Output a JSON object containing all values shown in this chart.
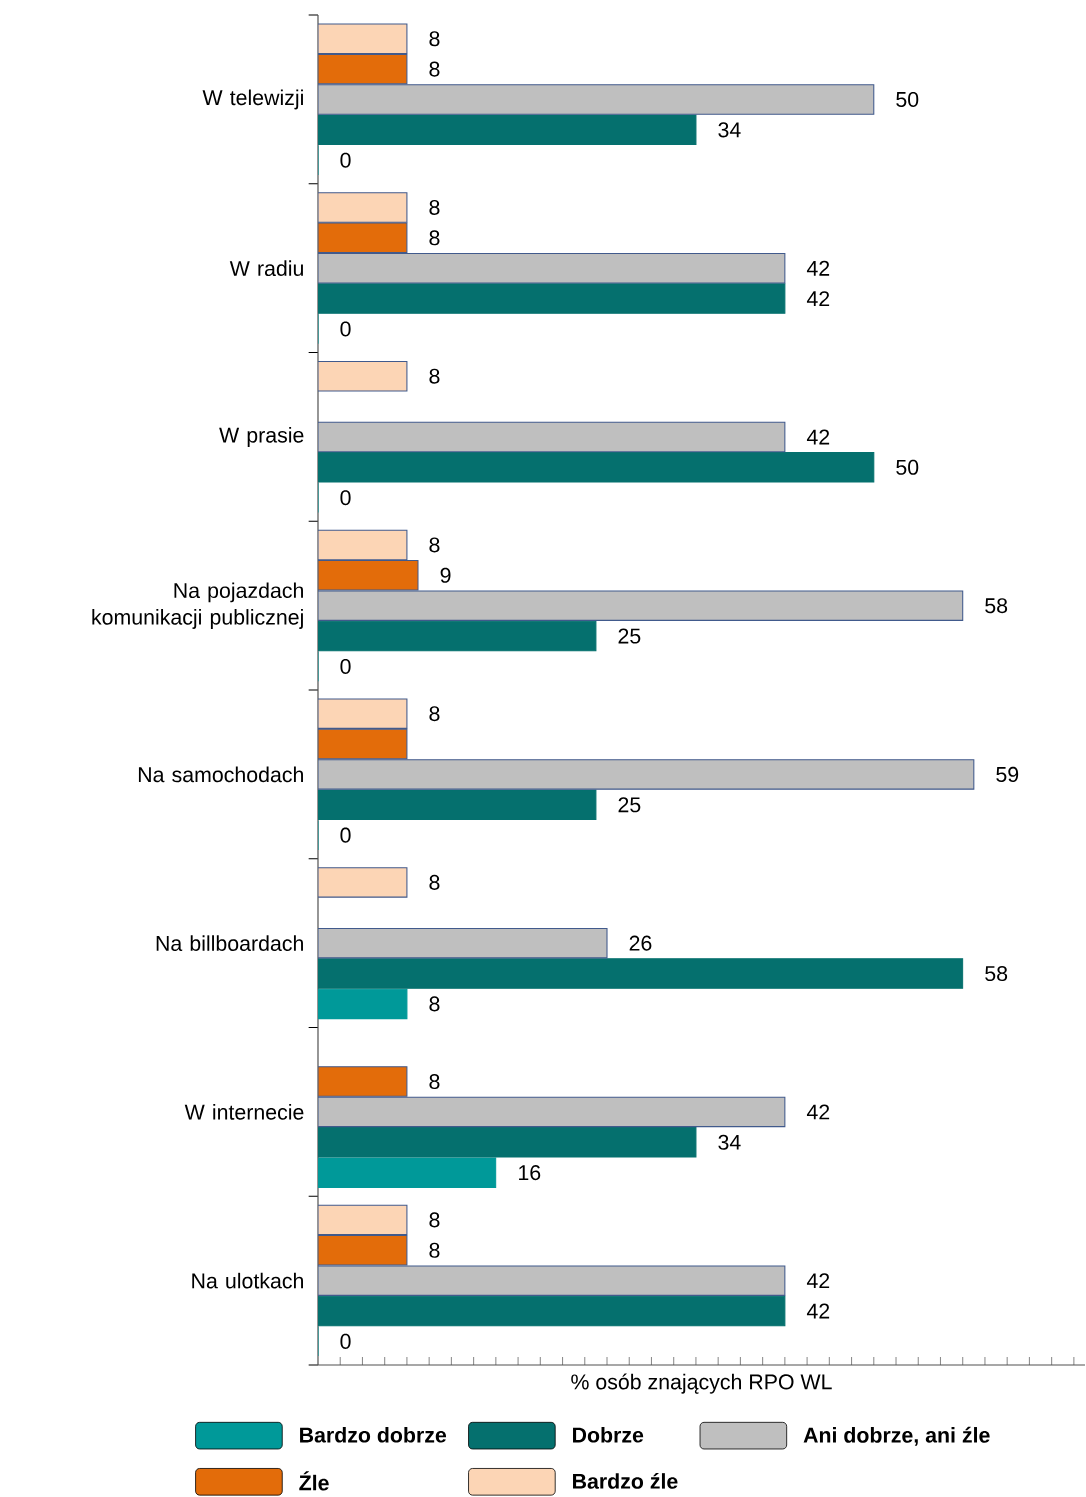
{
  "chart_data": {
    "type": "bar",
    "orientation": "horizontal",
    "categories": [
      "W telewizji",
      "W radiu",
      "W prasie",
      "Na pojazdach komunikacji publicznej",
      "Na samochodach",
      "Na billboardach",
      "W internecie",
      "Na ulotkach"
    ],
    "series": [
      {
        "name": "Bardzo dobrze",
        "color": "#009999",
        "values": [
          0,
          0,
          0,
          0,
          0,
          8,
          16,
          0
        ],
        "value_labels": [
          "0",
          "0",
          "0",
          "0",
          "0",
          "8",
          "16",
          "0"
        ]
      },
      {
        "name": "Dobrze",
        "color": "#05706e",
        "values": [
          34,
          42,
          50,
          25,
          25,
          58,
          34,
          42
        ],
        "value_labels": [
          "34",
          "42",
          "50",
          "25",
          "25",
          "58",
          "34",
          "42"
        ]
      },
      {
        "name": "Ani dobrze, ani źle",
        "color": "#bfbfbf",
        "values": [
          50,
          42,
          42,
          58,
          59,
          26,
          42,
          42
        ],
        "value_labels": [
          "50",
          "42",
          "42",
          "58",
          "59",
          "26",
          "42",
          "42"
        ]
      },
      {
        "name": "Źle",
        "color": "#e36c0a",
        "values": [
          8,
          8,
          null,
          9,
          8,
          null,
          8,
          8
        ],
        "value_labels": [
          "8",
          "8",
          null,
          "9",
          null,
          null,
          "8",
          "8"
        ]
      },
      {
        "name": "Bardzo źle",
        "color": "#fcd5b5",
        "values": [
          8,
          8,
          8,
          8,
          8,
          8,
          null,
          8
        ],
        "value_labels": [
          "8",
          "8",
          "8",
          "8",
          "8",
          "8",
          null,
          "8"
        ]
      }
    ],
    "xlabel": "% osób znających RPO WL",
    "xlim": [
      0,
      69
    ],
    "xticks": [
      {
        "value": 2,
        "label": null
      },
      {
        "value": 4,
        "label": null
      },
      {
        "value": 6,
        "label": null
      },
      {
        "value": 8,
        "label": null
      },
      {
        "value": 10,
        "label": null
      },
      {
        "value": 12,
        "label": null
      },
      {
        "value": 14,
        "label": null
      },
      {
        "value": 16,
        "label": null
      },
      {
        "value": 18,
        "label": null
      },
      {
        "value": 20,
        "label": null
      },
      {
        "value": 22,
        "label": null
      },
      {
        "value": 24,
        "label": null
      },
      {
        "value": 26,
        "label": null
      },
      {
        "value": 28,
        "label": null
      },
      {
        "value": 30,
        "label": null
      },
      {
        "value": 32,
        "label": null
      },
      {
        "value": 34,
        "label": null
      },
      {
        "value": 36,
        "label": null
      },
      {
        "value": 38,
        "label": null
      },
      {
        "value": 40,
        "label": null
      },
      {
        "value": 42,
        "label": null
      },
      {
        "value": 44,
        "label": null
      },
      {
        "value": 46,
        "label": null
      },
      {
        "value": 48,
        "label": null
      },
      {
        "value": 50,
        "label": null
      },
      {
        "value": 52,
        "label": null
      },
      {
        "value": 54,
        "label": null
      },
      {
        "value": 56,
        "label": null
      },
      {
        "value": 58,
        "label": null
      },
      {
        "value": 60,
        "label": null
      },
      {
        "value": 62,
        "label": null
      },
      {
        "value": 64,
        "label": null
      },
      {
        "value": 66,
        "label": null
      },
      {
        "value": 68,
        "label": null
      }
    ],
    "tick_labels": "y",
    "legend": "bottom",
    "grid": false
  }
}
